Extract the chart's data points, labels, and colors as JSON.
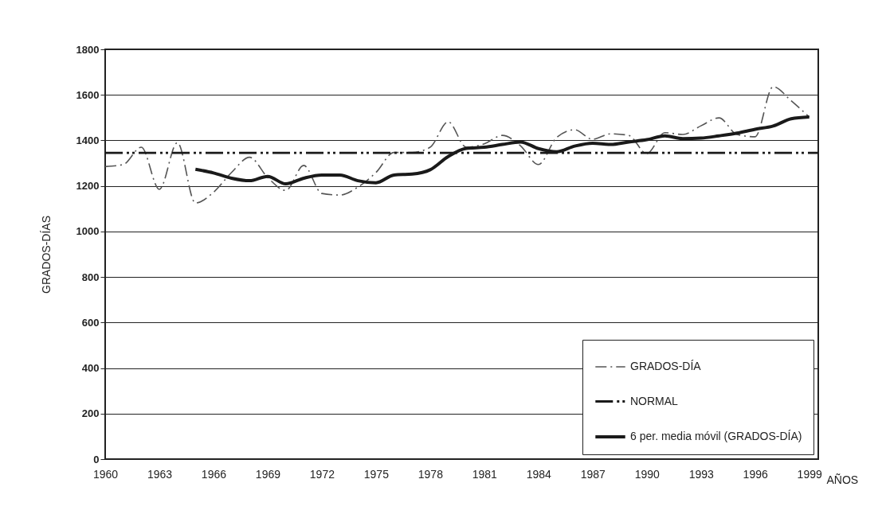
{
  "chart_data": {
    "type": "line",
    "xlabel": "AÑOS",
    "ylabel": "GRADOS-DÍAS",
    "xlim": [
      1960,
      1999.5
    ],
    "xticks": [
      1960,
      1963,
      1966,
      1969,
      1972,
      1975,
      1978,
      1981,
      1984,
      1987,
      1990,
      1993,
      1996,
      1999
    ],
    "ylim": [
      0,
      1800
    ],
    "yticks": [
      0,
      200,
      400,
      600,
      800,
      1000,
      1200,
      1400,
      1600,
      1800
    ],
    "grid": "y",
    "legend": "bottom right",
    "series": [
      {
        "name": "GRADOS-DÍA",
        "color": "#555555",
        "line_style": "dashed",
        "x": [
          1960,
          1961,
          1962,
          1963,
          1964,
          1965,
          1966,
          1967,
          1968,
          1969,
          1970,
          1971,
          1972,
          1973,
          1974,
          1975,
          1976,
          1977,
          1978,
          1979,
          1980,
          1981,
          1982,
          1983,
          1984,
          1985,
          1986,
          1987,
          1988,
          1989,
          1990,
          1991,
          1992,
          1993,
          1994,
          1995,
          1996,
          1997,
          1998,
          1999
        ],
        "values": [
          1285,
          1294,
          1370,
          1185,
          1390,
          1125,
          1172,
          1259,
          1326,
          1237,
          1180,
          1290,
          1167,
          1160,
          1195,
          1259,
          1347,
          1347,
          1370,
          1482,
          1370,
          1385,
          1422,
          1377,
          1294,
          1412,
          1447,
          1405,
          1429,
          1422,
          1342,
          1434,
          1426,
          1464,
          1499,
          1426,
          1416,
          1636,
          1574,
          1503
        ]
      },
      {
        "name": "NORMAL",
        "color": "#1a1a1a",
        "line_style": "dotted",
        "x": [
          1960,
          1999.5
        ],
        "values": [
          1345,
          1345
        ]
      },
      {
        "name": "6 per. media móvil (GRADOS-DÍA)",
        "color": "#1a1a1a",
        "line_style": "solid",
        "x": [
          1965,
          1966,
          1967,
          1968,
          1969,
          1970,
          1971,
          1972,
          1973,
          1974,
          1975,
          1976,
          1977,
          1978,
          1979,
          1980,
          1981,
          1982,
          1983,
          1984,
          1985,
          1986,
          1987,
          1988,
          1989,
          1990,
          1991,
          1992,
          1993,
          1994,
          1995,
          1996,
          1997,
          1998,
          1999
        ],
        "values": [
          1273,
          1257,
          1234,
          1223,
          1242,
          1209,
          1234,
          1248,
          1248,
          1223,
          1214,
          1248,
          1252,
          1271,
          1329,
          1365,
          1370,
          1382,
          1393,
          1364,
          1350,
          1375,
          1388,
          1382,
          1393,
          1403,
          1420,
          1408,
          1410,
          1420,
          1432,
          1449,
          1463,
          1495,
          1503
        ]
      }
    ]
  }
}
